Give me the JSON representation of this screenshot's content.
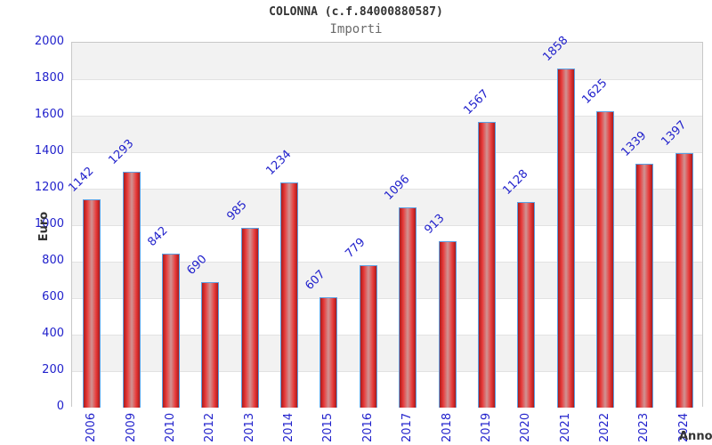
{
  "header": {
    "title": "COLONNA (c.f.84000880587)",
    "subtitle": "Importi"
  },
  "chart_data": {
    "type": "bar",
    "title": "COLONNA (c.f.84000880587)",
    "subtitle": "Importi",
    "xlabel": "Anno",
    "ylabel": "Euro",
    "categories": [
      "2006",
      "2009",
      "2010",
      "2012",
      "2013",
      "2014",
      "2015",
      "2016",
      "2017",
      "2018",
      "2019",
      "2020",
      "2021",
      "2022",
      "2023",
      "2024"
    ],
    "values": [
      1142,
      1293,
      842,
      690,
      985,
      1234,
      607,
      779,
      1096,
      913,
      1567,
      1128,
      1858,
      1625,
      1339,
      1397
    ],
    "ylim": [
      0,
      2000
    ],
    "ytick_step": 200,
    "yticks": [
      0,
      200,
      400,
      600,
      800,
      1000,
      1200,
      1400,
      1600,
      1800,
      2000
    ],
    "grid": "horizontal gridlines with alternating gray/white bands",
    "legend": "none",
    "colors": {
      "tick_label": "#2222cc",
      "value_label": "#2222cc",
      "bar_border": "#5ba0e3",
      "bar_edge": "#aa1b1b",
      "bar_bright": "#e83a3a",
      "bar_center": "#cf9494",
      "band_gray": "#f2f2f2",
      "band_white": "#ffffff",
      "gridline": "#e2e2e2",
      "plot_border": "#c8c8c8",
      "title_color": "#333333",
      "subtitle_color": "#6b6b6b"
    }
  }
}
